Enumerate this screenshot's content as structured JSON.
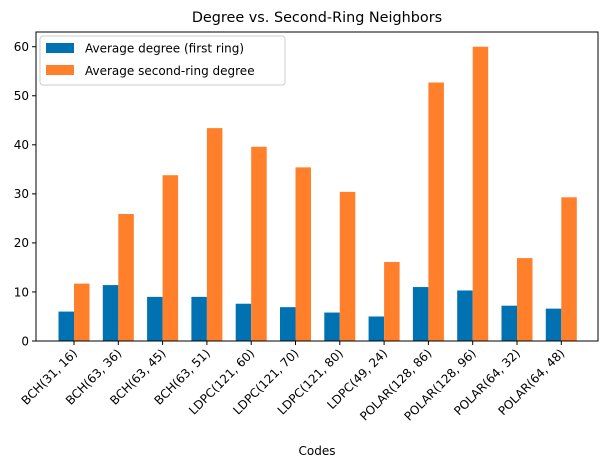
{
  "chart_data": {
    "type": "bar",
    "title": "Degree vs. Second-Ring Neighbors",
    "xlabel": "Codes",
    "ylabel": "",
    "ylim": [
      0,
      63
    ],
    "yticks": [
      0,
      10,
      20,
      30,
      40,
      50,
      60
    ],
    "grid": false,
    "legend_position": "top-left",
    "categories": [
      "BCH(31, 16)",
      "BCH(63, 36)",
      "BCH(63, 45)",
      "BCH(63, 51)",
      "LDPC(121, 60)",
      "LDPC(121, 70)",
      "LDPC(121, 80)",
      "LDPC(49, 24)",
      "POLAR(128, 86)",
      "POLAR(128, 96)",
      "POLAR(64, 32)",
      "POLAR(64, 48)"
    ],
    "series": [
      {
        "name": "Average degree (first ring)",
        "color": "#0072b2",
        "values": [
          6.0,
          11.4,
          9.0,
          9.0,
          7.6,
          6.9,
          5.8,
          5.0,
          11.0,
          10.3,
          7.2,
          6.6
        ]
      },
      {
        "name": "Average second-ring degree",
        "color": "#ff7f2a",
        "values": [
          11.7,
          25.9,
          33.8,
          43.4,
          39.6,
          35.4,
          30.4,
          16.1,
          52.7,
          60.0,
          16.9,
          29.3
        ]
      }
    ]
  }
}
